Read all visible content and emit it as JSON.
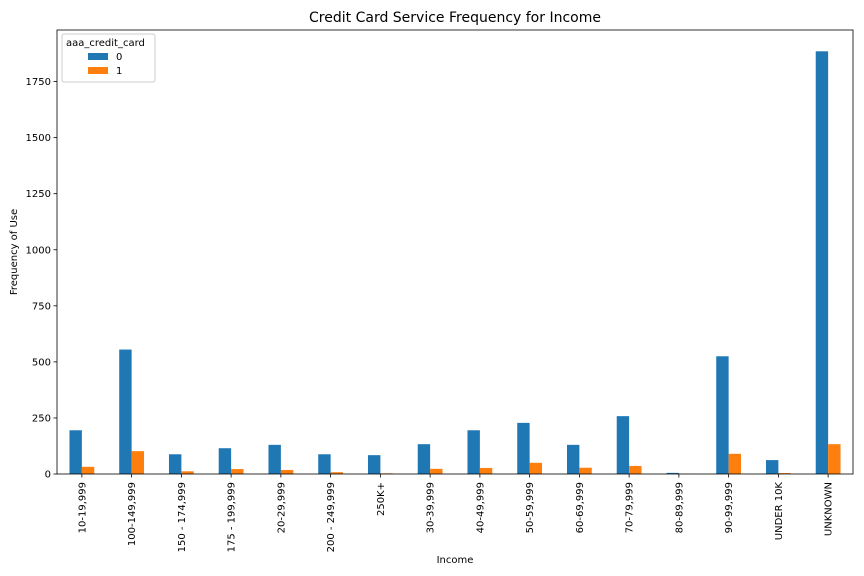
{
  "chart_data": {
    "type": "bar",
    "title": "Credit Card Service Frequency for Income",
    "xlabel": "Income",
    "ylabel": "Frequency of Use",
    "categories": [
      "10-19,999",
      "100-149,999",
      "150 - 174,999",
      "175 - 199,999",
      "20-29,999",
      "200 - 249,999",
      "250K+",
      "30-39,999",
      "40-49,999",
      "50-59,999",
      "60-69,999",
      "70-79,999",
      "80-89,999",
      "90-99,999",
      "UNDER 10K",
      "UNKNOWN"
    ],
    "series": [
      {
        "name": "0",
        "color": "#1f77b4",
        "values": [
          195,
          555,
          88,
          115,
          130,
          88,
          84,
          133,
          195,
          228,
          130,
          258,
          5,
          525,
          62,
          1885
        ]
      },
      {
        "name": "1",
        "color": "#ff7f0e",
        "values": [
          32,
          102,
          12,
          22,
          18,
          8,
          3,
          23,
          27,
          50,
          28,
          36,
          1,
          90,
          4,
          133
        ]
      }
    ],
    "ylim": [
      0,
      1980
    ],
    "yticks": [
      0,
      250,
      500,
      750,
      1000,
      1250,
      1500,
      1750
    ],
    "legend": {
      "title": "aaa_credit_card",
      "placement": "top-left"
    },
    "grid": false
  }
}
